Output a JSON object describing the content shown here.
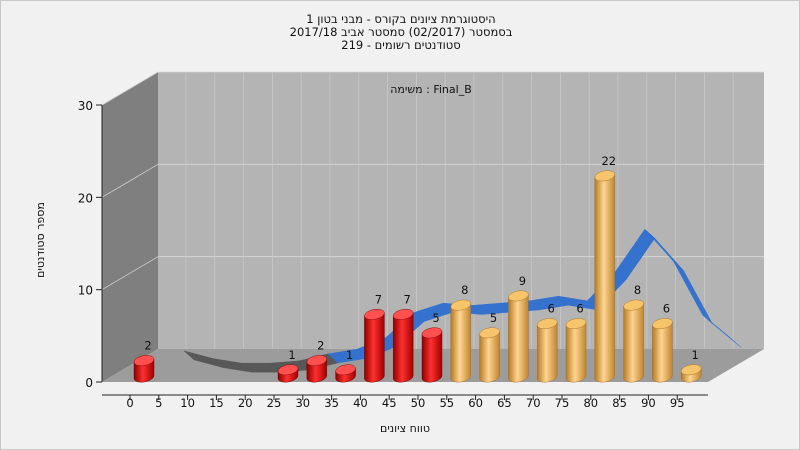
{
  "titles": {
    "line1": "היסטוגרמת ציונים בקורס - מבני בטון 1",
    "line2": "בסמסטר  (02/2017)  סמסטר אביב 2017/18",
    "line3": "סטודנטים רשומים - 219"
  },
  "chart_data": {
    "type": "bar",
    "subtitle": "משימה : Final_B",
    "xlabel": "טווח ציונים",
    "ylabel": "מספר סטודנטים",
    "ylim": [
      0,
      30
    ],
    "yticks": [
      "0",
      "10",
      "20",
      "30"
    ],
    "xticks": [
      "0",
      "5",
      "10",
      "15",
      "20",
      "25",
      "30",
      "35",
      "40",
      "45",
      "50",
      "55",
      "60",
      "65",
      "70",
      "75",
      "80",
      "85",
      "90",
      "95"
    ],
    "categories": [
      "0",
      "5",
      "10",
      "15",
      "20",
      "25",
      "30",
      "35",
      "40",
      "45",
      "50",
      "55",
      "60",
      "65",
      "70",
      "75",
      "80",
      "85",
      "90",
      "95"
    ],
    "values": [
      2,
      0,
      0,
      0,
      0,
      1,
      2,
      1,
      7,
      7,
      5,
      8,
      5,
      9,
      6,
      6,
      22,
      8,
      6,
      1
    ],
    "data_labels": [
      "2",
      "",
      "",
      "",
      "",
      "1",
      "2",
      "1",
      "7",
      "7",
      "5",
      "8",
      "5",
      "9",
      "6",
      "6",
      "22",
      "8",
      "6",
      "1"
    ],
    "bar_colors": {
      "fail": "#e01818",
      "pass": "#f0b050"
    },
    "pass_from_index": 11,
    "trend_colors": {
      "low": "#555555",
      "high": "#2e6fd0"
    },
    "grid": true
  }
}
